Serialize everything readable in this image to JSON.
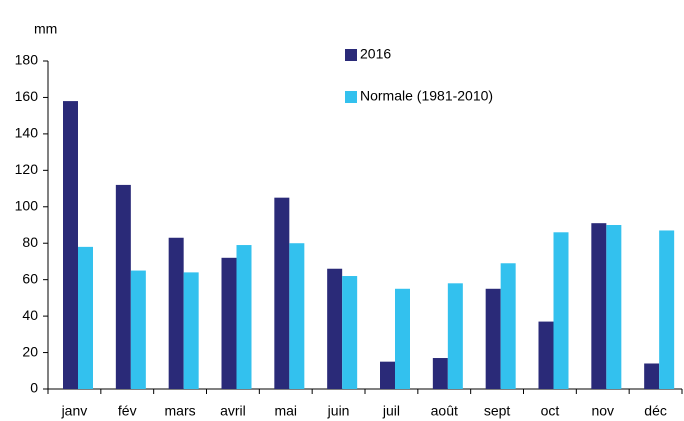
{
  "chart_data": {
    "type": "bar",
    "y_label": "mm",
    "categories": [
      "janv",
      "fév",
      "mars",
      "avril",
      "mai",
      "juin",
      "juil",
      "août",
      "sept",
      "oct",
      "nov",
      "déc"
    ],
    "series": [
      {
        "name": "2016",
        "color": "#2a2a78",
        "values": [
          158,
          112,
          83,
          72,
          105,
          66,
          15,
          17,
          55,
          37,
          91,
          14
        ]
      },
      {
        "name": "Normale (1981-2010)",
        "color": "#33c1ee",
        "values": [
          78,
          65,
          64,
          79,
          80,
          62,
          55,
          58,
          69,
          86,
          90,
          87
        ]
      }
    ],
    "ylim": [
      0,
      180
    ],
    "yticks": [
      0,
      20,
      40,
      60,
      80,
      100,
      120,
      140,
      160,
      180
    ],
    "grid": false
  }
}
